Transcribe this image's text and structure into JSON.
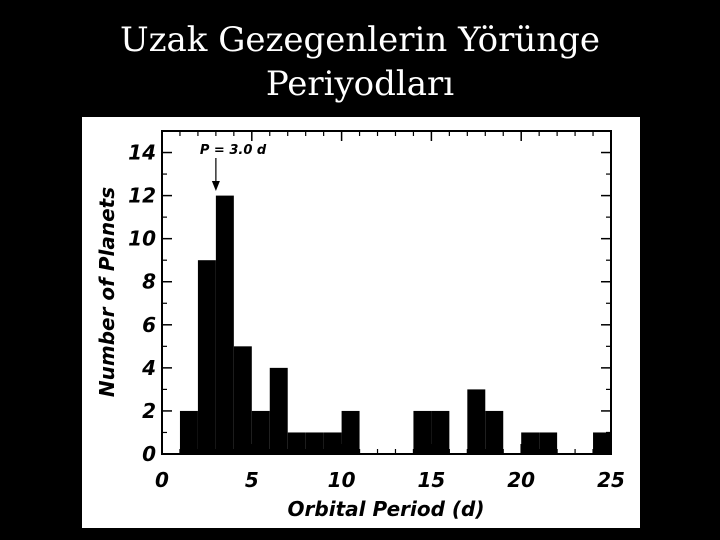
{
  "slide": {
    "title_line1": "Uzak Gezegenlerin Yörünge",
    "title_line2": "Periyodları"
  },
  "chart_data": {
    "type": "bar",
    "xlabel": "Orbital Period (d)",
    "ylabel": "Number of Planets",
    "xlim": [
      0,
      25
    ],
    "ylim": [
      0,
      15
    ],
    "x_ticks": [
      0,
      5,
      10,
      15,
      20,
      25
    ],
    "y_ticks": [
      0,
      2,
      4,
      6,
      8,
      10,
      12,
      14
    ],
    "bin_width": 1,
    "bins": [
      {
        "x0": 1,
        "x1": 2,
        "count": 2
      },
      {
        "x0": 2,
        "x1": 3,
        "count": 9
      },
      {
        "x0": 3,
        "x1": 4,
        "count": 12
      },
      {
        "x0": 4,
        "x1": 5,
        "count": 5
      },
      {
        "x0": 5,
        "x1": 6,
        "count": 2
      },
      {
        "x0": 6,
        "x1": 7,
        "count": 4
      },
      {
        "x0": 7,
        "x1": 8,
        "count": 1
      },
      {
        "x0": 8,
        "x1": 9,
        "count": 1
      },
      {
        "x0": 9,
        "x1": 10,
        "count": 1
      },
      {
        "x0": 10,
        "x1": 11,
        "count": 2
      },
      {
        "x0": 14,
        "x1": 15,
        "count": 2
      },
      {
        "x0": 15,
        "x1": 16,
        "count": 2
      },
      {
        "x0": 17,
        "x1": 18,
        "count": 3
      },
      {
        "x0": 18,
        "x1": 19,
        "count": 2
      },
      {
        "x0": 20,
        "x1": 21,
        "count": 1
      },
      {
        "x0": 21,
        "x1": 22,
        "count": 1
      },
      {
        "x0": 24,
        "x1": 25,
        "count": 1
      }
    ],
    "annotation": {
      "text": "P = 3.0 d",
      "x": 3.0
    },
    "bar_color": "#000000",
    "background": "#ffffff"
  }
}
